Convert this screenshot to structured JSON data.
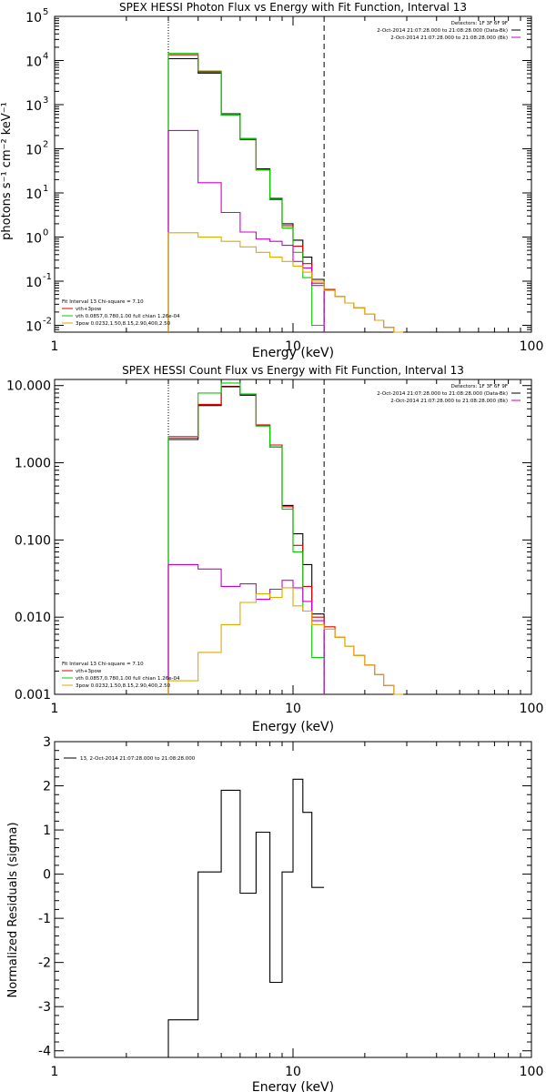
{
  "chart_data": [
    {
      "type": "line",
      "title": "SPEX HESSI Photon Flux vs Energy with Fit Function, Interval 13",
      "xlabel": "Energy (keV)",
      "ylabel": "photons s⁻¹ cm⁻² keV⁻¹",
      "xscale": "log",
      "yscale": "log",
      "xlim": [
        1,
        100
      ],
      "ylim": [
        0.007,
        100000
      ],
      "x_ticks": [
        {
          "v": 1,
          "label": "1"
        },
        {
          "v": 10,
          "label": "10"
        },
        {
          "v": 100,
          "label": "100"
        }
      ],
      "y_ticks": [
        {
          "v": 0.01,
          "base": "10",
          "exp": "-2"
        },
        {
          "v": 0.1,
          "base": "10",
          "exp": "-1"
        },
        {
          "v": 1,
          "base": "10",
          "exp": "0"
        },
        {
          "v": 10,
          "base": "10",
          "exp": "1"
        },
        {
          "v": 100,
          "base": "10",
          "exp": "2"
        },
        {
          "v": 1000,
          "base": "10",
          "exp": "3"
        },
        {
          "v": 10000,
          "base": "10",
          "exp": "4"
        },
        {
          "v": 100000,
          "base": "10",
          "exp": "5"
        }
      ],
      "fit_range": [
        3.0,
        13.5
      ],
      "legend_top_right": [
        {
          "label": "Detectors: 1F 3F 6F 9F",
          "color": ""
        },
        {
          "label": "2-Oct-2014 21:07:28.000 to 21:08:28.000 (Data-Bk)",
          "color": "#000000"
        },
        {
          "label": "2-Oct-2014 21:07:28.000 to 21:08:28.000 (Bk)",
          "color": "#cc00cc"
        }
      ],
      "legend_bottom_left": [
        {
          "label": "Fit Interval 13   Chi-square = 7.10",
          "color": ""
        },
        {
          "label": "vth+3pow",
          "color": "#dd0000"
        },
        {
          "label": "vth 0.0857,0.780,1.00  full chian 1.26e-04",
          "color": "#00cc00"
        },
        {
          "label": "3pow 0.0232,1.50,8.15,2.90,400,2.50",
          "color": "#ddaa00"
        }
      ],
      "edges": [
        3.0,
        4.0,
        5.0,
        6.0,
        7.0,
        8.0,
        9.0,
        10.0,
        11.0,
        12.0,
        13.5,
        15.0,
        16.5,
        18.0,
        20.0,
        22.0,
        24.0,
        26.5,
        29.0
      ],
      "series": [
        {
          "name": "Data-Bk",
          "color": "#000000",
          "values": [
            11000,
            5200,
            620,
            170,
            35,
            7.5,
            2.0,
            0.85,
            0.35,
            0.11,
            null,
            null,
            null,
            null,
            null,
            null,
            null,
            null
          ]
        },
        {
          "name": "vth+3pow",
          "color": "#dd0000",
          "values": [
            13500,
            5500,
            580,
            160,
            33,
            7.0,
            1.8,
            0.62,
            0.25,
            0.09,
            0.065,
            0.045,
            0.032,
            0.025,
            0.018,
            0.013,
            0.009,
            0.007
          ]
        },
        {
          "name": "vth",
          "color": "#00cc00",
          "values": [
            14500,
            5800,
            580,
            170,
            33,
            7.2,
            1.6,
            0.45,
            0.12,
            0.01,
            null,
            null,
            null,
            null,
            null,
            null,
            null,
            null
          ]
        },
        {
          "name": "Bk",
          "color": "#cc00cc",
          "values": [
            260,
            17,
            3.6,
            1.3,
            0.9,
            0.8,
            0.65,
            0.28,
            0.2,
            0.08,
            null,
            null,
            null,
            null,
            null,
            null,
            null,
            null
          ]
        },
        {
          "name": "3pow",
          "color": "#ddaa00",
          "values": [
            1.25,
            1.0,
            0.8,
            0.6,
            0.45,
            0.35,
            0.28,
            0.22,
            0.16,
            0.1,
            0.062,
            0.045,
            0.032,
            0.025,
            0.018,
            0.013,
            0.009,
            0.007
          ]
        }
      ]
    },
    {
      "type": "line",
      "title": "SPEX HESSI Count Flux vs Energy with Fit Function, Interval 13",
      "xlabel": "Energy (keV)",
      "ylabel": "",
      "xscale": "log",
      "yscale": "log",
      "xlim": [
        1,
        100
      ],
      "ylim": [
        0.001,
        12
      ],
      "x_ticks": [
        {
          "v": 1,
          "label": "1"
        },
        {
          "v": 10,
          "label": "10"
        },
        {
          "v": 100,
          "label": "100"
        }
      ],
      "y_ticks": [
        {
          "v": 0.001,
          "label": "0.001"
        },
        {
          "v": 0.01,
          "label": "0.010"
        },
        {
          "v": 0.1,
          "label": "0.100"
        },
        {
          "v": 1,
          "label": "1.000"
        },
        {
          "v": 10,
          "label": "10.000"
        }
      ],
      "fit_range": [
        3.0,
        13.5
      ],
      "legend_top_right": [
        {
          "label": "Detectors: 1F 3F 6F 9F",
          "color": ""
        },
        {
          "label": "2-Oct-2014 21:07:28.000 to 21:08:28.000 (Data-Bk)",
          "color": "#000000"
        },
        {
          "label": "2-Oct-2014 21:07:28.000 to 21:08:28.000 (Bk)",
          "color": "#cc00cc"
        }
      ],
      "legend_bottom_left": [
        {
          "label": "Fit Interval 13   Chi-square = 7.10",
          "color": ""
        },
        {
          "label": "vth+3pow",
          "color": "#dd0000"
        },
        {
          "label": "vth 0.0857,0.780,1.00  full chian 1.26e-04",
          "color": "#00cc00"
        },
        {
          "label": "3pow 0.0232,1.50,8.15,2.90,400,2.50",
          "color": "#ddaa00"
        }
      ],
      "edges": [
        3.0,
        4.0,
        5.0,
        6.0,
        7.0,
        8.0,
        9.0,
        10.0,
        11.0,
        12.0,
        13.5,
        15.0,
        16.5,
        18.0,
        20.0,
        22.0,
        24.0,
        26.5,
        29.0
      ],
      "series": [
        {
          "name": "Data-Bk",
          "color": "#000000",
          "values": [
            2.0,
            5.5,
            9.8,
            7.5,
            3.0,
            1.6,
            0.28,
            0.12,
            0.048,
            0.011,
            null,
            null,
            null,
            null,
            null,
            null,
            null,
            null
          ]
        },
        {
          "name": "vth+3pow",
          "color": "#dd0000",
          "values": [
            2.1,
            5.7,
            9.6,
            7.7,
            3.1,
            1.7,
            0.27,
            0.085,
            0.025,
            0.01,
            0.0075,
            0.0055,
            0.0042,
            0.0032,
            0.0024,
            0.0018,
            0.0013,
            0.001
          ]
        },
        {
          "name": "vth",
          "color": "#00cc00",
          "values": [
            2.2,
            8.0,
            10.8,
            7.8,
            3.0,
            1.6,
            0.25,
            0.07,
            0.012,
            0.003,
            null,
            null,
            null,
            null,
            null,
            null,
            null,
            null
          ]
        },
        {
          "name": "Bk",
          "color": "#cc00cc",
          "values": [
            0.048,
            0.042,
            0.025,
            0.027,
            0.017,
            0.023,
            0.03,
            0.024,
            0.016,
            0.009,
            null,
            null,
            null,
            null,
            null,
            null,
            null,
            null
          ]
        },
        {
          "name": "3pow",
          "color": "#ddaa00",
          "values": [
            0.0015,
            0.0035,
            0.008,
            0.0155,
            0.02,
            0.018,
            0.024,
            0.014,
            0.012,
            0.008,
            0.007,
            0.0055,
            0.0042,
            0.0032,
            0.0024,
            0.0018,
            0.0013,
            0.001
          ]
        }
      ]
    },
    {
      "type": "line",
      "title": "",
      "xlabel": "Energy (keV)",
      "ylabel": "Normalized Residuals (sigma)",
      "xscale": "log",
      "yscale": "linear",
      "xlim": [
        1,
        100
      ],
      "ylim": [
        -4.15,
        3
      ],
      "x_ticks": [
        {
          "v": 1,
          "label": "1"
        },
        {
          "v": 10,
          "label": "10"
        },
        {
          "v": 100,
          "label": "100"
        }
      ],
      "y_ticks": [
        {
          "v": -4,
          "label": "-4"
        },
        {
          "v": -3,
          "label": "-3"
        },
        {
          "v": -2,
          "label": "-2"
        },
        {
          "v": -1,
          "label": "-1"
        },
        {
          "v": 0,
          "label": "0"
        },
        {
          "v": 1,
          "label": "1"
        },
        {
          "v": 2,
          "label": "2"
        },
        {
          "v": 3,
          "label": "3"
        }
      ],
      "legend": [
        {
          "label": "13,  2-Oct-2014 21:07:28.000 to 21:08:28.000",
          "color": "#000000"
        }
      ],
      "edges": [
        3.0,
        4.0,
        5.0,
        6.0,
        7.0,
        8.0,
        9.0,
        10.0,
        11.0,
        12.0,
        13.5
      ],
      "series": [
        {
          "name": "13,  2-Oct-2014 21:07:28.000 to 21:08:28.000",
          "color": "#000000",
          "values": [
            -3.3,
            0.05,
            1.9,
            -0.43,
            0.95,
            -2.45,
            0.05,
            2.15,
            1.4,
            -0.3
          ]
        }
      ]
    }
  ]
}
